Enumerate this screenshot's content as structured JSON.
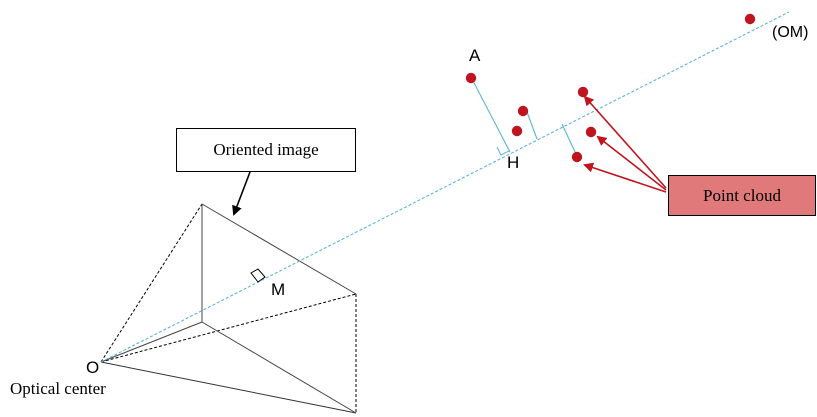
{
  "labels": {
    "oriented_image": "Oriented image",
    "point_cloud": "Point cloud",
    "optical_center": "Optical center",
    "point_a": "A",
    "point_h": "H",
    "point_m": "M",
    "point_o": "O",
    "line_om": "(OM)"
  },
  "colors": {
    "ray": "#5ab4d6",
    "point": "#c0141e",
    "arrow": "#c0141e",
    "point_cloud_box": "#e07a7a",
    "frustum": "#000000"
  }
}
